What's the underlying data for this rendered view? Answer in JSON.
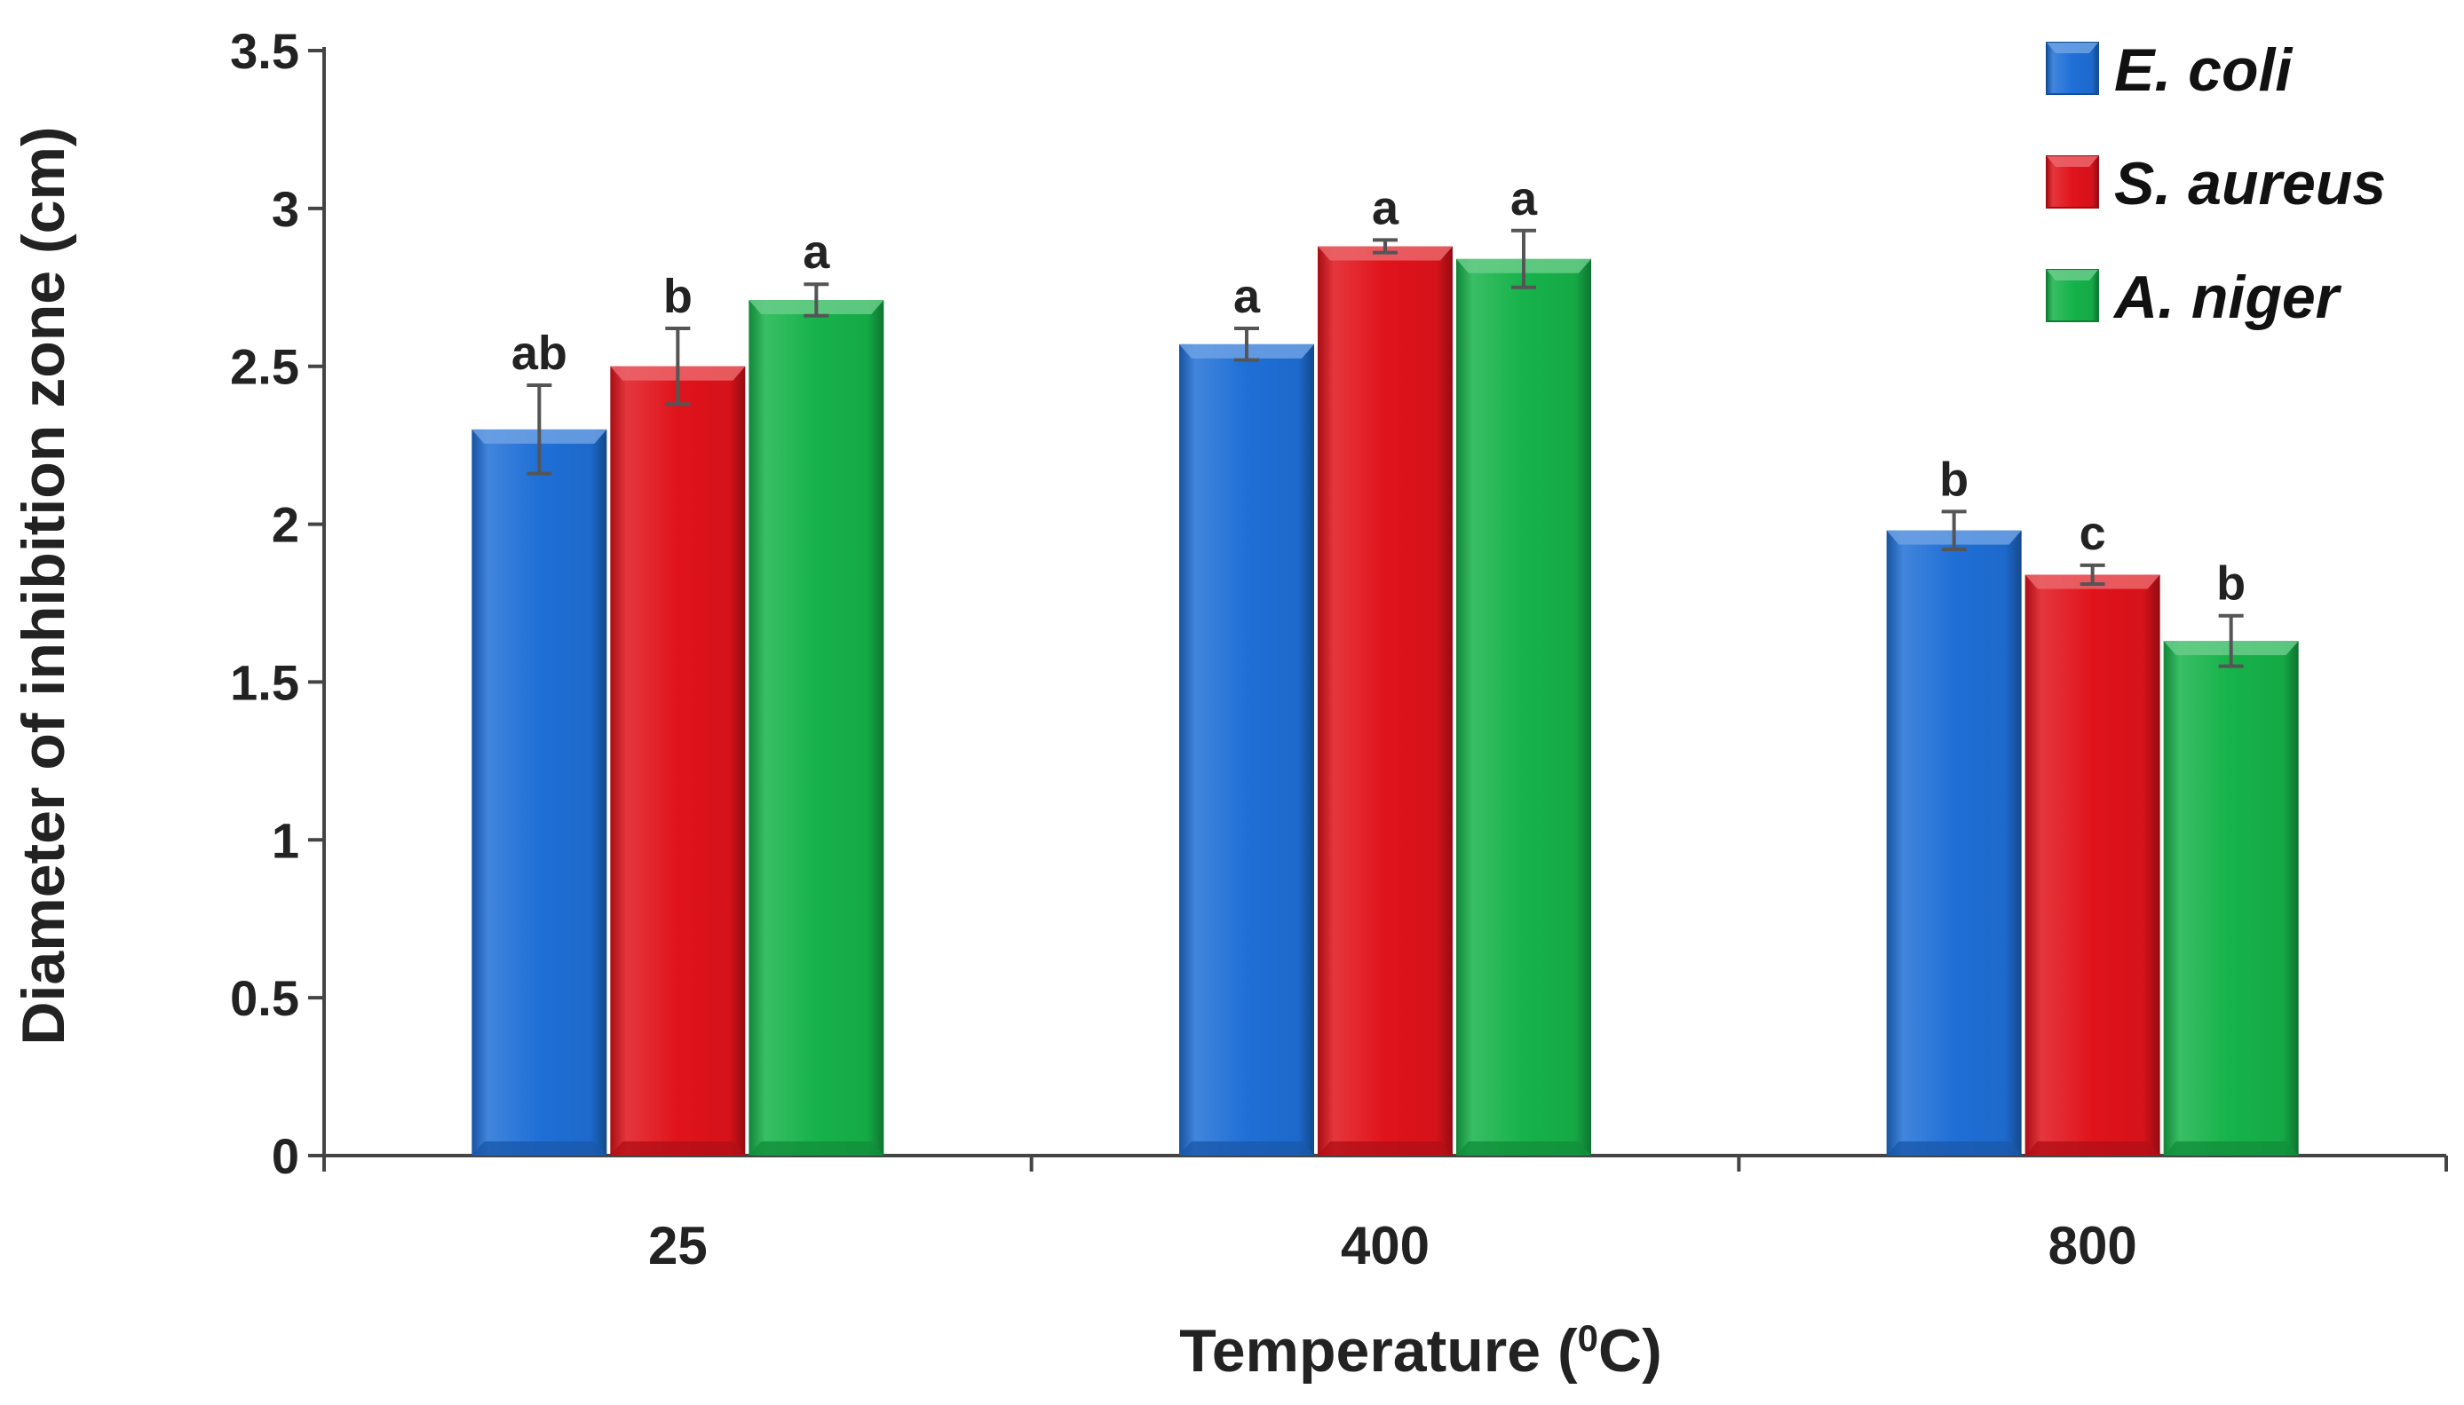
{
  "chart_data": {
    "type": "bar",
    "title": "",
    "xlabel": "Temperature (",
    "xlabel_superscript": "0",
    "xlabel_unit": "C)",
    "ylabel": "Diameter of inhibition zone (cm)",
    "ylim": [
      0,
      3.5
    ],
    "yticks": [
      "0",
      "0.5",
      "1",
      "1.5",
      "2",
      "2.5",
      "3",
      "3.5"
    ],
    "categories": [
      "25",
      "400",
      "800"
    ],
    "legend_position": "top-right",
    "series": [
      {
        "name": "E. coli",
        "color": "#1f6fd6",
        "values": [
          2.3,
          2.57,
          1.98
        ],
        "errors": [
          0.14,
          0.05,
          0.06
        ],
        "labels": [
          "ab",
          "a",
          "b"
        ]
      },
      {
        "name": "S. aureus",
        "color": "#e0131b",
        "values": [
          2.5,
          2.88,
          1.84
        ],
        "errors": [
          0.12,
          0.02,
          0.03
        ],
        "labels": [
          "b",
          "a",
          "c"
        ]
      },
      {
        "name": "A. niger",
        "color": "#16b24a",
        "values": [
          2.71,
          2.84,
          1.63
        ],
        "errors": [
          0.05,
          0.09,
          0.08
        ],
        "labels": [
          "a",
          "a",
          "b"
        ]
      }
    ]
  }
}
